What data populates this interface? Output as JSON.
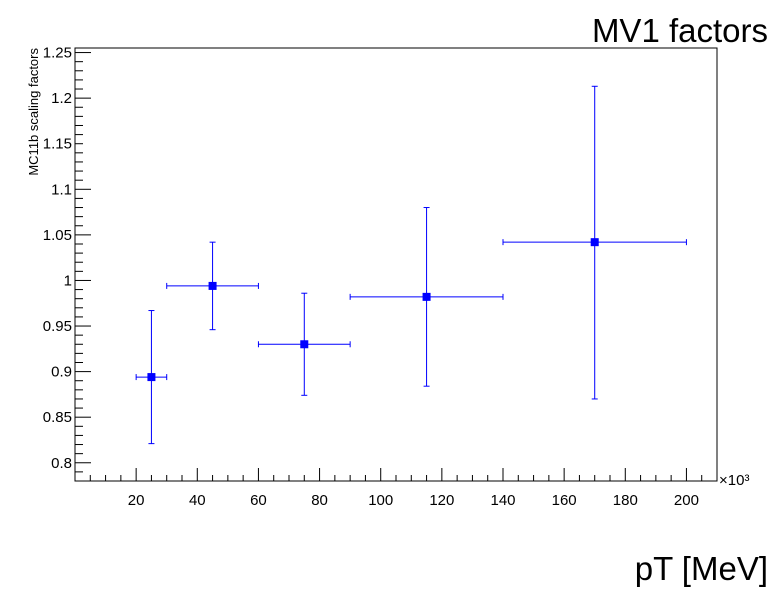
{
  "chart_data": {
    "type": "scatter",
    "title": "MV1 factors",
    "xlabel": "pT [MeV]",
    "ylabel": "MC11b scaling factors",
    "x_multiplier": "×10³",
    "xlim": [
      0,
      210
    ],
    "ylim": [
      0.78,
      1.255
    ],
    "x_ticks": [
      20,
      40,
      60,
      80,
      100,
      120,
      140,
      160,
      180,
      200
    ],
    "y_ticks": [
      0.8,
      0.85,
      0.9,
      0.95,
      1,
      1.05,
      1.1,
      1.15,
      1.2,
      1.25
    ],
    "grid": false,
    "marker_color": "#0000ff",
    "points": [
      {
        "x": 25,
        "x_low": 20,
        "x_high": 30,
        "y": 0.894,
        "y_low": 0.821,
        "y_high": 0.967
      },
      {
        "x": 45,
        "x_low": 30,
        "x_high": 60,
        "y": 0.994,
        "y_low": 0.946,
        "y_high": 1.042
      },
      {
        "x": 75,
        "x_low": 60,
        "x_high": 90,
        "y": 0.93,
        "y_low": 0.874,
        "y_high": 0.986
      },
      {
        "x": 115,
        "x_low": 90,
        "x_high": 140,
        "y": 0.982,
        "y_low": 0.884,
        "y_high": 1.08
      },
      {
        "x": 170,
        "x_low": 140,
        "x_high": 200,
        "y": 1.042,
        "y_low": 0.87,
        "y_high": 1.213
      }
    ]
  }
}
